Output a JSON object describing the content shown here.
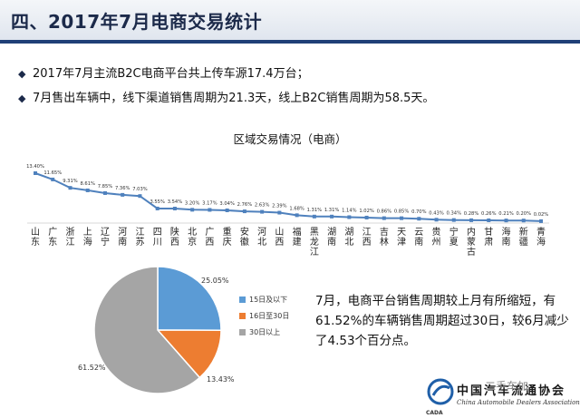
{
  "header": {
    "title": "四、2017年7月电商交易统计"
  },
  "bullets": [
    "2017年7月主流B2C电商平台共上传车源17.4万台；",
    "7月售出车辆中，线下渠道销售周期为21.3天，线上B2C销售周期为58.5天。"
  ],
  "bullet_mark": "◆",
  "summary_text": "7月，电商平台销售周期较上月有所缩短，有61.52%的车辆销售周期超过30日，较6月减少了4.53个百分点。",
  "logo": {
    "name": "中国汽车流通协会",
    "english": "China Automobile Dealers Association",
    "short": "CADA"
  },
  "watermark": "二手车加",
  "chart_data": [
    {
      "type": "line",
      "title": "区域交易情况（电商）",
      "categories": [
        "山东",
        "广东",
        "浙江",
        "上海",
        "辽宁",
        "河南",
        "江苏",
        "四川",
        "陕西",
        "北京",
        "广西",
        "重庆",
        "安徽",
        "河北",
        "山西",
        "福建",
        "黑龙江",
        "湖南",
        "湖北",
        "江西",
        "吉林",
        "天津",
        "云南",
        "贵州",
        "宁夏",
        "内蒙古",
        "甘肃",
        "海南",
        "新疆",
        "青海"
      ],
      "values": [
        13.4,
        11.65,
        9.31,
        8.61,
        7.85,
        7.36,
        7.03,
        3.55,
        3.54,
        3.2,
        3.17,
        3.04,
        2.76,
        2.63,
        2.39,
        1.68,
        1.31,
        1.31,
        1.14,
        1.02,
        0.86,
        0.85,
        0.7,
        0.43,
        0.34,
        0.28,
        0.26,
        0.21,
        0.2,
        0.02
      ],
      "data_labels": [
        "13.40%",
        "11.65%",
        "9.31%",
        "8.61%",
        "7.85%",
        "7.36%",
        "7.03%",
        "3.55%",
        "3.54%",
        "3.20%",
        "3.17%",
        "3.04%",
        "2.76%",
        "2.63%",
        "2.39%",
        "1.68%",
        "1.31%",
        "1.31%",
        "1.14%",
        "1.02%",
        "0.86%",
        "0.85%",
        "0.70%",
        "0.43%",
        "0.34%",
        "0.28%",
        "0.26%",
        "0.21%",
        "0.20%",
        "0.02%"
      ],
      "color": "#4f81bd",
      "grid": false
    },
    {
      "type": "pie",
      "slices": [
        {
          "label": "15日及以下",
          "value": 25.05,
          "display": "25.05%",
          "color": "#5b9bd5"
        },
        {
          "label": "16日至30日",
          "value": 13.43,
          "display": "13.43%",
          "color": "#ed7d31"
        },
        {
          "label": "30日以上",
          "value": 61.52,
          "display": "61.52%",
          "color": "#a5a5a5"
        }
      ],
      "legend_position": "right"
    }
  ]
}
